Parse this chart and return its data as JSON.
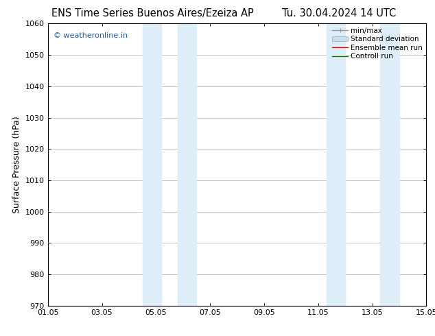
{
  "title_left": "ENS Time Series Buenos Aires/Ezeiza AP",
  "title_right": "Tu. 30.04.2024 14 UTC",
  "ylabel": "Surface Pressure (hPa)",
  "ylim": [
    970,
    1060
  ],
  "yticks": [
    970,
    980,
    990,
    1000,
    1010,
    1020,
    1030,
    1040,
    1050,
    1060
  ],
  "xtick_labels": [
    "01.05",
    "03.05",
    "05.05",
    "07.05",
    "09.05",
    "11.05",
    "13.05",
    "15.05"
  ],
  "xtick_positions": [
    0,
    2,
    4,
    6,
    8,
    10,
    12,
    14
  ],
  "xlim": [
    0,
    14
  ],
  "shaded_bands": [
    {
      "x_start": 3.5,
      "x_end": 4.2
    },
    {
      "x_start": 4.8,
      "x_end": 5.5
    },
    {
      "x_start": 10.3,
      "x_end": 11.0
    },
    {
      "x_start": 12.3,
      "x_end": 13.0
    }
  ],
  "shaded_color": "#ddeef8",
  "watermark_text": "© weatheronline.in",
  "watermark_color": "#1a5cb5",
  "legend_entries": [
    {
      "label": "min/max",
      "color": "#999999",
      "lw": 1.0
    },
    {
      "label": "Standard deviation",
      "color": "#c8dff0",
      "lw": 6
    },
    {
      "label": "Ensemble mean run",
      "color": "red",
      "lw": 1.0
    },
    {
      "label": "Controll run",
      "color": "green",
      "lw": 1.0
    }
  ],
  "bg_color": "white",
  "grid_color": "#bbbbbb",
  "title_fontsize": 10.5,
  "ylabel_fontsize": 9,
  "tick_fontsize": 8,
  "watermark_fontsize": 8,
  "legend_fontsize": 7.5
}
